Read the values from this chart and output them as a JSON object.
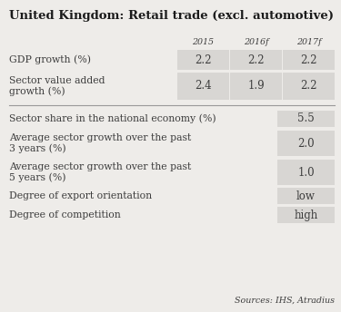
{
  "title": "United Kingdom: Retail trade (excl. automotive)",
  "bg_color": "#eeece9",
  "cell_bg": "#d8d6d3",
  "col_headers": [
    "2015",
    "2016f",
    "2017f"
  ],
  "top_rows": [
    {
      "label": "GDP growth (%)",
      "values": [
        "2.2",
        "2.2",
        "2.2"
      ],
      "single_line": true
    },
    {
      "label": "Sector value added\ngrowth (%)",
      "values": [
        "2.4",
        "1.9",
        "2.2"
      ],
      "single_line": false
    }
  ],
  "bottom_rows": [
    {
      "label": "Sector share in the national economy (%)",
      "value": "5.5",
      "single_line": true
    },
    {
      "label": "Average sector growth over the past\n3 years (%)",
      "value": "2.0",
      "single_line": false
    },
    {
      "label": "Average sector growth over the past\n5 years (%)",
      "value": "1.0",
      "single_line": false
    },
    {
      "label": "Degree of export orientation",
      "value": "low",
      "single_line": true
    },
    {
      "label": "Degree of competition",
      "value": "high",
      "single_line": true
    }
  ],
  "source_text": "Sources: IHS, Atradius",
  "title_fontsize": 9.5,
  "header_fontsize": 6.8,
  "cell_fontsize": 8.5,
  "label_fontsize": 7.8,
  "source_fontsize": 6.8,
  "text_color": "#3d3d3d",
  "title_color": "#1a1a1a",
  "divider_color": "#999999"
}
